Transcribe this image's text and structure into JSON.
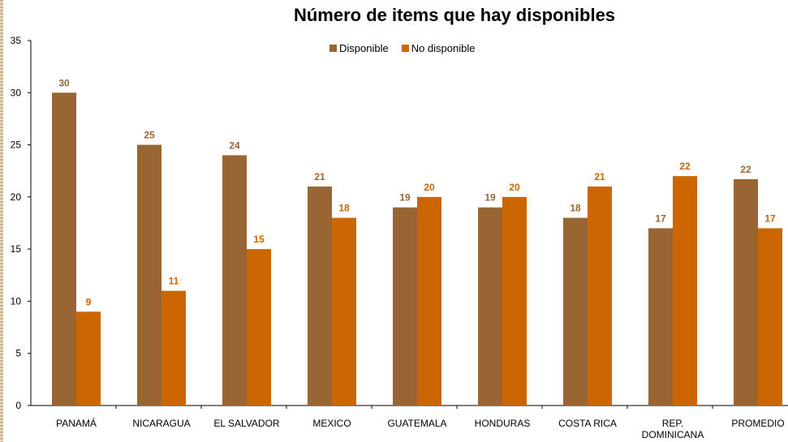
{
  "chart_data": {
    "type": "bar",
    "title": "Número de items que hay disponibles",
    "xlabel": "",
    "ylabel": "",
    "ylim": [
      0,
      35
    ],
    "yticks": [
      0,
      5,
      10,
      15,
      20,
      25,
      30,
      35
    ],
    "grid": false,
    "legend_position": "top",
    "categories": [
      [
        "PANAMÁ"
      ],
      [
        "NICARAGUA"
      ],
      [
        "EL SALVADOR"
      ],
      [
        "MEXICO"
      ],
      [
        "GUATEMALA"
      ],
      [
        "HONDURAS"
      ],
      [
        "COSTA RICA"
      ],
      [
        "REP.",
        "DOMINICANA"
      ],
      [
        "PROMEDIO"
      ]
    ],
    "series": [
      {
        "name": "Disponible",
        "color": "#996633",
        "label_color": "#996633",
        "values": [
          30,
          25,
          24,
          21,
          19,
          19,
          18,
          17,
          21.7
        ],
        "labels": [
          "30",
          "25",
          "24",
          "21",
          "19",
          "19",
          "18",
          "17",
          "22"
        ]
      },
      {
        "name": "No disponible",
        "color": "#cc6600",
        "label_color": "#cc6600",
        "values": [
          9,
          11,
          15,
          18,
          20,
          20,
          21,
          22,
          17
        ],
        "labels": [
          "9",
          "11",
          "15",
          "18",
          "20",
          "20",
          "21",
          "22",
          "17"
        ]
      }
    ]
  }
}
